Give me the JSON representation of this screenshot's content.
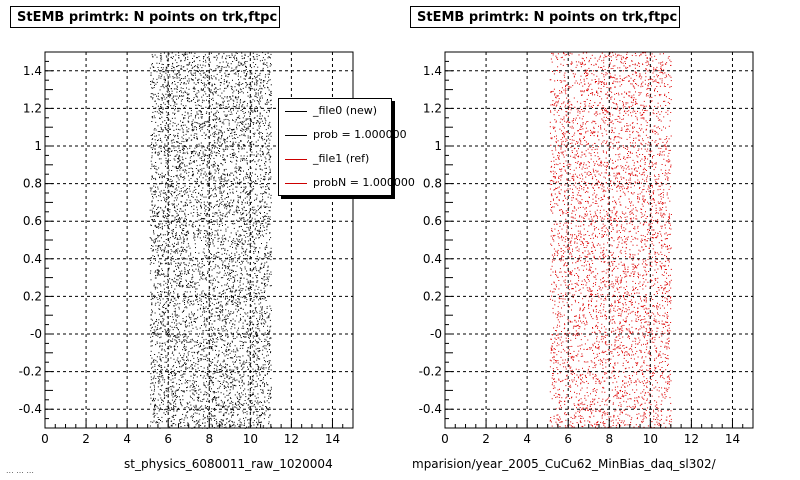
{
  "left_pad": {
    "title": "StEMB primtrk: N points on trk,ftpc",
    "xlabel": "st_physics_6080011_raw_1020004",
    "legend": [
      {
        "label": "_file0 (new)",
        "color": "#000000"
      },
      {
        "label": "prob = 1.000000",
        "color": "#000000"
      },
      {
        "label": "_file1 (ref)",
        "color": "#cc0000"
      },
      {
        "label": "probN = 1.000000",
        "color": "#cc0000"
      }
    ]
  },
  "right_pad": {
    "title": "StEMB primtrk: N points on trk,ftpc",
    "xlabel": "mparision/year_2005_CuCu62_MinBias_daq_sl302/"
  },
  "footer": "... ... ...",
  "chart_data": [
    {
      "type": "scatter",
      "title": "StEMB primtrk: N points on trk,ftpc",
      "xlabel": "st_physics_6080011_raw_1020004",
      "ylabel": "",
      "xlim": [
        0,
        15
      ],
      "ylim": [
        -0.5,
        1.5
      ],
      "x_ticks": [
        "0",
        "2",
        "4",
        "6",
        "8",
        "10",
        "12",
        "14"
      ],
      "y_ticks": [
        "-0.4",
        "-0.2",
        "-0",
        "0.2",
        "0.4",
        "0.6",
        "0.8",
        "1",
        "1.2",
        "1.4"
      ],
      "grid": true,
      "legend_position": "top-right",
      "series": [
        {
          "name": "_file0 (new)",
          "color": "#000000",
          "x_range": [
            5.1,
            11.0
          ],
          "y_range": [
            -0.5,
            1.5
          ],
          "points_shown": 6000
        }
      ]
    },
    {
      "type": "scatter",
      "title": "StEMB primtrk: N points on trk,ftpc",
      "xlabel": "mparision/year_2005_CuCu62_MinBias_daq_sl302/",
      "ylabel": "",
      "xlim": [
        0,
        15
      ],
      "ylim": [
        -0.5,
        1.5
      ],
      "x_ticks": [
        "0",
        "2",
        "4",
        "6",
        "8",
        "10",
        "12",
        "14"
      ],
      "y_ticks": [
        "-0.4",
        "-0.2",
        "-0",
        "0.2",
        "0.4",
        "0.6",
        "0.8",
        "1",
        "1.2",
        "1.4"
      ],
      "grid": true,
      "series": [
        {
          "name": "_file1 (ref)",
          "color": "#dd0000",
          "x_range": [
            5.1,
            11.0
          ],
          "y_range": [
            -0.5,
            1.5
          ],
          "points_shown": 4500
        }
      ]
    }
  ]
}
